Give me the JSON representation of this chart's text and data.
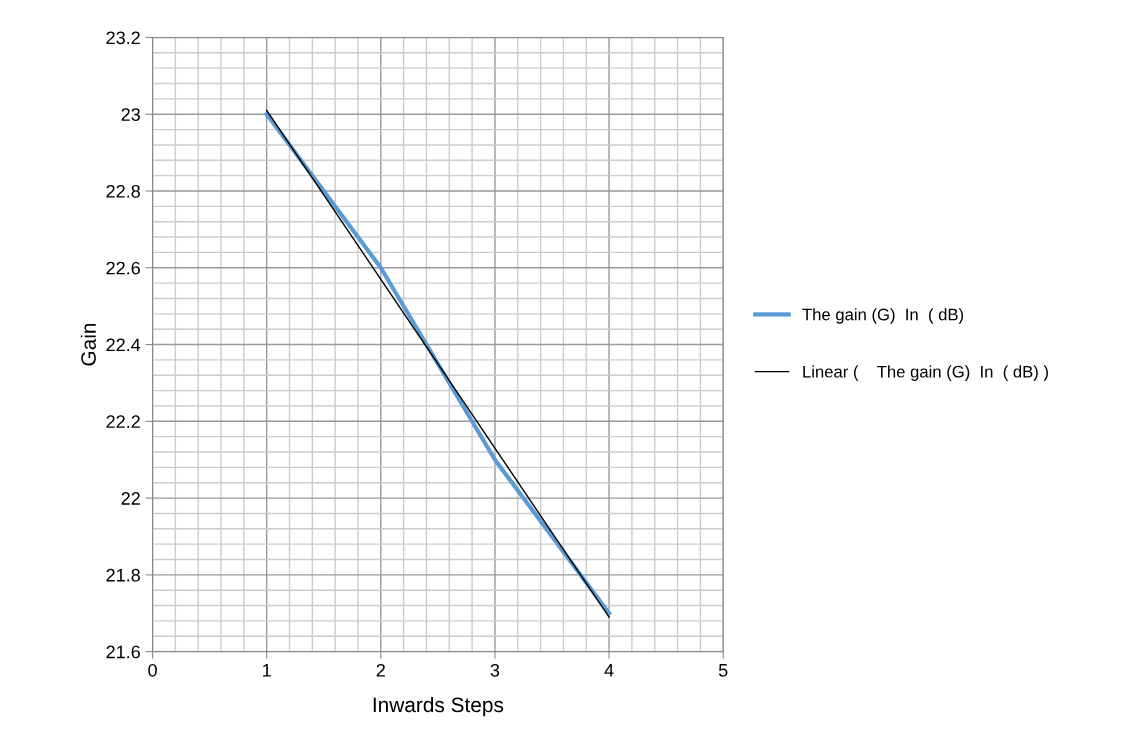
{
  "chart_data": {
    "type": "line",
    "xlabel": "Inwards Steps",
    "ylabel": "Gain",
    "x": [
      1,
      2,
      3,
      4
    ],
    "series": [
      {
        "name": "The gain (G)  In  ( dB)",
        "color": "#5b9bd5",
        "values": [
          23.0,
          22.6,
          22.1,
          21.7
        ]
      },
      {
        "name": "Linear (    The gain (G)  In  ( dB) )",
        "color": "#000000",
        "type": "line",
        "x": [
          1,
          4
        ],
        "values": [
          23.01,
          21.69
        ]
      }
    ],
    "xlim": [
      0,
      5
    ],
    "xticks": [
      0,
      1,
      2,
      3,
      4,
      5
    ],
    "ylim": [
      21.6,
      23.2
    ],
    "yticks": [
      21.6,
      21.8,
      22,
      22.2,
      22.4,
      22.6,
      22.8,
      23,
      23.2
    ],
    "grid": true,
    "legend": "right",
    "marker": "none",
    "line_style": "solid"
  }
}
